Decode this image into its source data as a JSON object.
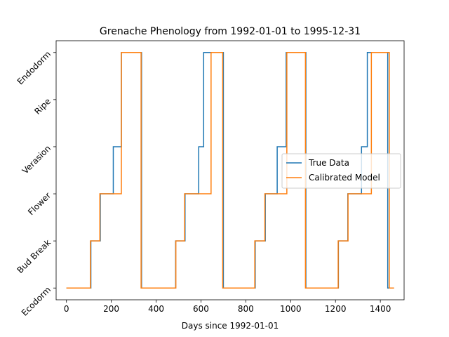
{
  "chart_data": {
    "type": "line",
    "title": "Grenache Phenology from 1992-01-01 to 1995-12-31",
    "xlabel": "Days since 1992-01-01",
    "ylabel": "",
    "xlim": [
      -46,
      1506
    ],
    "ylim": [
      -0.25,
      5.25
    ],
    "x_ticks": [
      0,
      200,
      400,
      600,
      800,
      1000,
      1200,
      1400
    ],
    "y_categories": [
      "Ecodorm",
      "Bud Break",
      "Flower",
      "Verasion",
      "Ripe",
      "Endodorm"
    ],
    "legend_position": "center-right",
    "series": [
      {
        "name": "True Data",
        "color": "#1f77b4",
        "step_points": [
          [
            0,
            0
          ],
          [
            109,
            1
          ],
          [
            151,
            2
          ],
          [
            209,
            3
          ],
          [
            245,
            5
          ],
          [
            335,
            0
          ],
          [
            487,
            1
          ],
          [
            529,
            2
          ],
          [
            590,
            3
          ],
          [
            612,
            5
          ],
          [
            700,
            0
          ],
          [
            842,
            1
          ],
          [
            887,
            2
          ],
          [
            940,
            3
          ],
          [
            980,
            5
          ],
          [
            1068,
            0
          ],
          [
            1213,
            1
          ],
          [
            1255,
            2
          ],
          [
            1316,
            3
          ],
          [
            1342,
            5
          ],
          [
            1433,
            0
          ],
          [
            1461,
            0
          ]
        ]
      },
      {
        "name": "Calibrated Model",
        "color": "#ff7f0e",
        "step_points": [
          [
            0,
            0
          ],
          [
            107,
            1
          ],
          [
            149,
            2
          ],
          [
            245,
            5
          ],
          [
            333,
            0
          ],
          [
            488,
            1
          ],
          [
            527,
            2
          ],
          [
            645,
            5
          ],
          [
            697,
            0
          ],
          [
            840,
            1
          ],
          [
            885,
            2
          ],
          [
            983,
            5
          ],
          [
            1066,
            0
          ],
          [
            1212,
            1
          ],
          [
            1256,
            2
          ],
          [
            1360,
            5
          ],
          [
            1440,
            0
          ],
          [
            1461,
            0
          ]
        ]
      }
    ]
  }
}
